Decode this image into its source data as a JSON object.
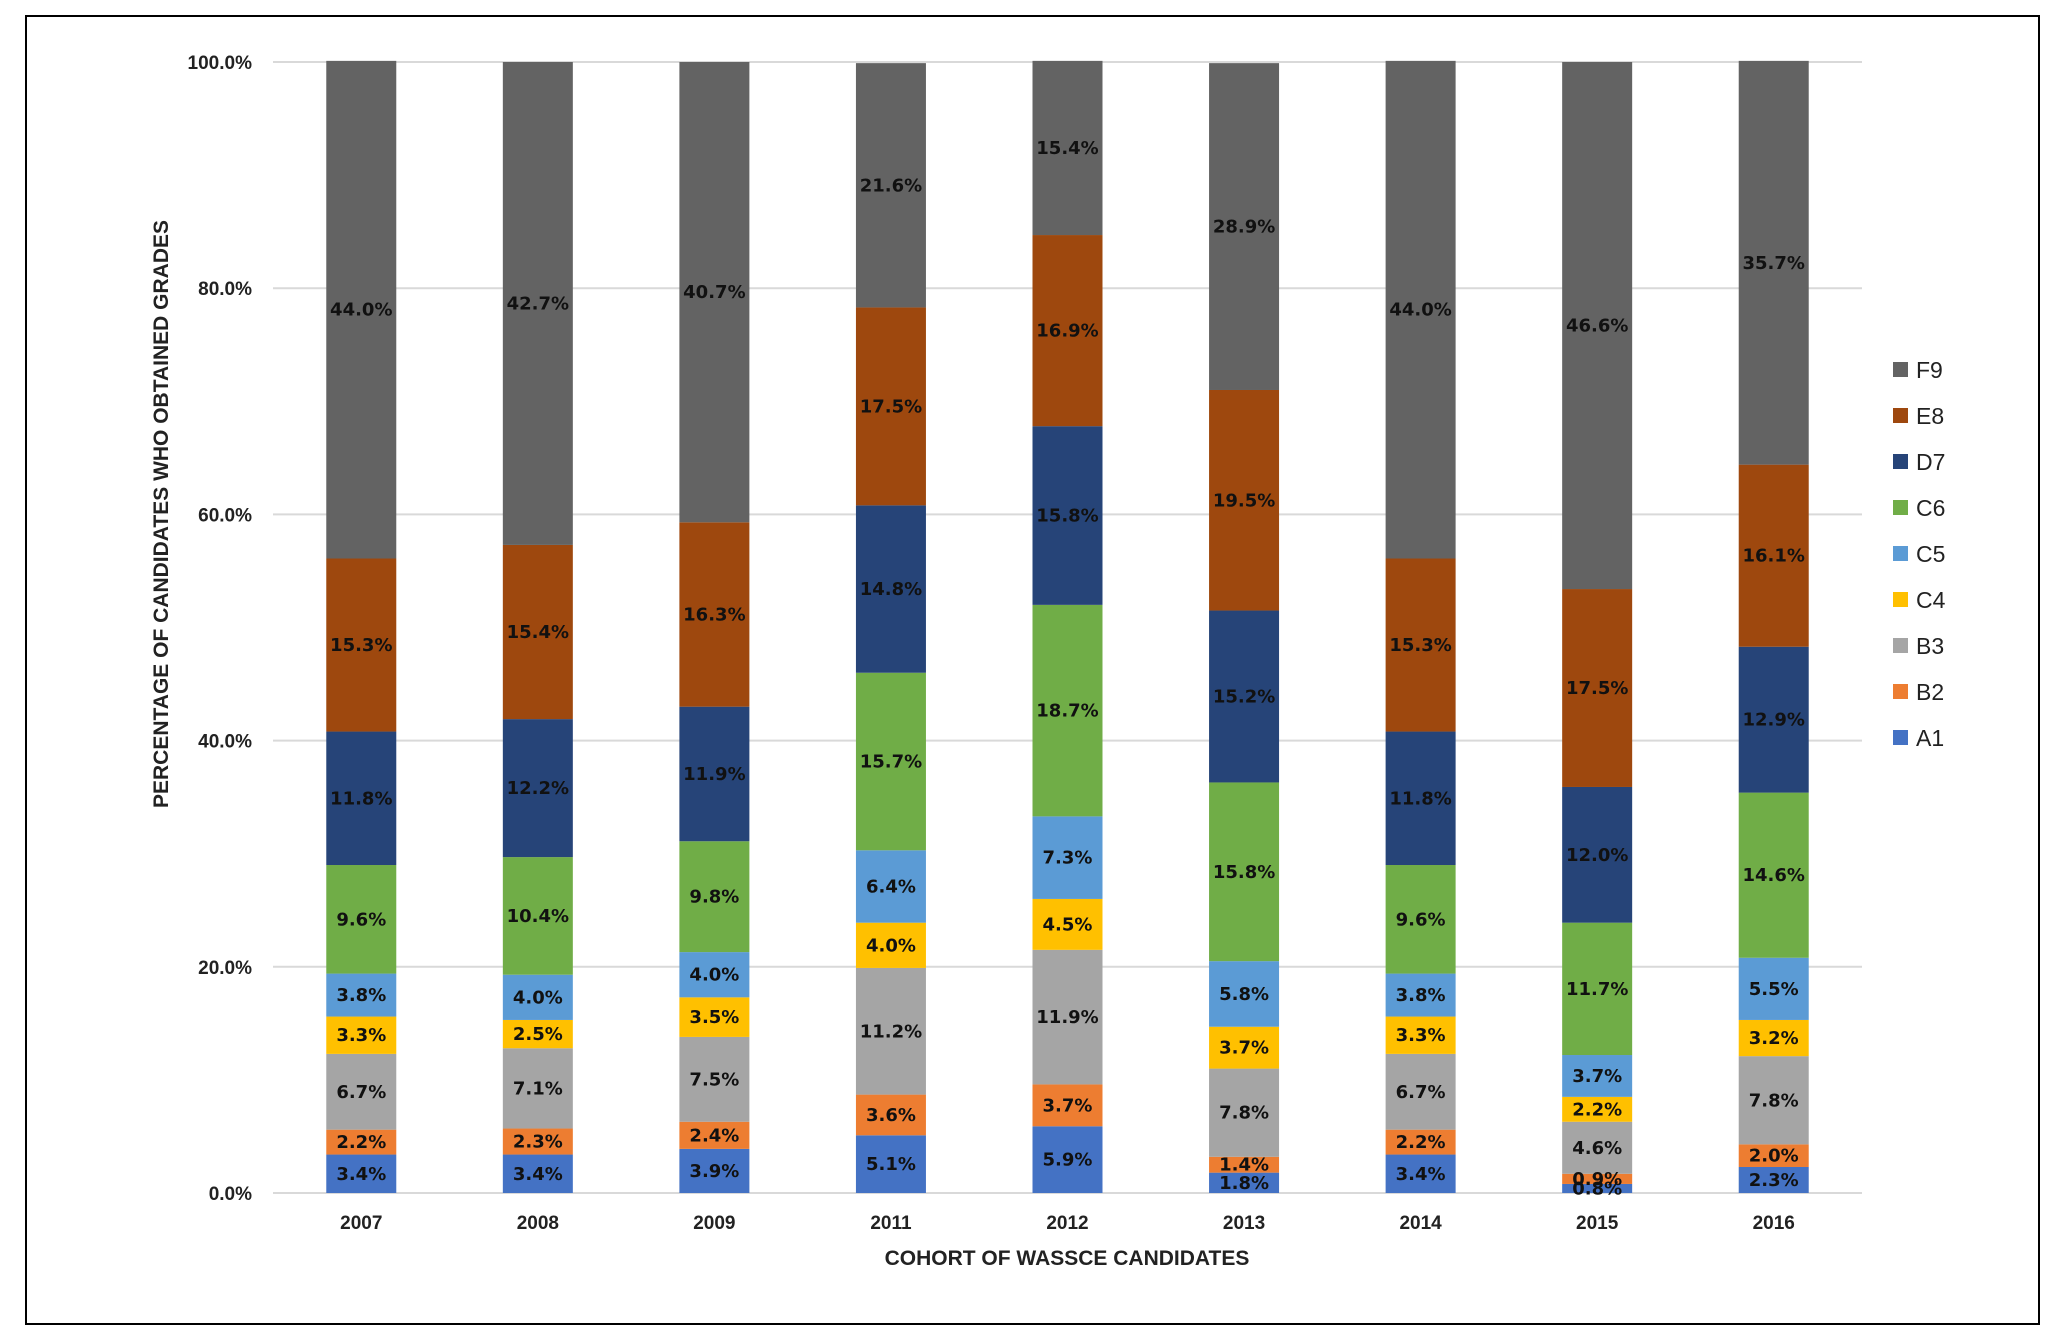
{
  "chart_data": {
    "type": "bar",
    "stacked": true,
    "title": "",
    "xlabel": "COHORT OF WASSCE CANDIDATES",
    "ylabel": "PERCENTAGE OF CANDIDATES WHO OBTAINED GRADES",
    "ylim": [
      0,
      100
    ],
    "y_ticks": [
      "0.0%",
      "20.0%",
      "40.0%",
      "60.0%",
      "80.0%",
      "100.0%"
    ],
    "grid": true,
    "legend_position": "right",
    "categories": [
      "2007",
      "2008",
      "2009",
      "2011",
      "2012",
      "2013",
      "2014",
      "2015",
      "2016"
    ],
    "series": [
      {
        "name": "A1",
        "color": "#4472C4",
        "values": [
          3.4,
          3.4,
          3.9,
          5.1,
          5.9,
          1.8,
          3.4,
          0.8,
          2.3
        ],
        "labels": [
          "3.4%",
          "3.4%",
          "3.9%",
          "5.1%",
          "5.9%",
          "1.8%",
          "3.4%",
          "0.8%",
          "2.3%"
        ]
      },
      {
        "name": "B2",
        "color": "#ED7D31",
        "values": [
          2.2,
          2.3,
          2.4,
          3.6,
          3.7,
          1.4,
          2.2,
          0.9,
          2.0
        ],
        "labels": [
          "2.2%",
          "2.3%",
          "2.4%",
          "3.6%",
          "3.7%",
          "1.4%",
          "2.2%",
          "0.9%",
          "2.0%"
        ]
      },
      {
        "name": "B3",
        "color": "#A5A5A5",
        "values": [
          6.7,
          7.1,
          7.5,
          11.2,
          11.9,
          7.8,
          6.7,
          4.6,
          7.8
        ],
        "labels": [
          "6.7%",
          "7.1%",
          "7.5%",
          "11.2%",
          "11.9%",
          "7.8%",
          "6.7%",
          "4.6%",
          "7.8%"
        ]
      },
      {
        "name": "C4",
        "color": "#FFC000",
        "values": [
          3.3,
          2.5,
          3.5,
          4.0,
          4.5,
          3.7,
          3.3,
          2.2,
          3.2
        ],
        "labels": [
          "3.3%",
          "2.5%",
          "3.5%",
          "4.0%",
          "4.5%",
          "3.7%",
          "3.3%",
          "2.2%",
          "3.2%"
        ]
      },
      {
        "name": "C5",
        "color": "#5B9BD5",
        "values": [
          3.8,
          4.0,
          4.0,
          6.4,
          7.3,
          5.8,
          3.8,
          3.7,
          5.5
        ],
        "labels": [
          "3.8%",
          "4.0%",
          "4.0%",
          "6.4%",
          "7.3%",
          "5.8%",
          "3.8%",
          "3.7%",
          "5.5%"
        ]
      },
      {
        "name": "C6",
        "color": "#70AD47",
        "values": [
          9.6,
          10.4,
          9.8,
          15.7,
          18.7,
          15.8,
          9.6,
          11.7,
          14.6
        ],
        "labels": [
          "9.6%",
          "10.4%",
          "9.8%",
          "15.7%",
          "18.7%",
          "15.8%",
          "9.6%",
          "11.7%",
          "14.6%"
        ]
      },
      {
        "name": "D7",
        "color": "#264478",
        "values": [
          11.8,
          12.2,
          11.9,
          14.8,
          15.8,
          15.2,
          11.8,
          12.0,
          12.9
        ],
        "labels": [
          "11.8%",
          "12.2%",
          "11.9%",
          "14.8%",
          "15.8%",
          "15.2%",
          "11.8%",
          "12.0%",
          "12.9%"
        ]
      },
      {
        "name": "E8",
        "color": "#9E480E",
        "values": [
          15.3,
          15.4,
          16.3,
          17.5,
          16.9,
          19.5,
          15.3,
          17.5,
          16.1
        ],
        "labels": [
          "15.3%",
          "15.4%",
          "16.3%",
          "17.5%",
          "16.9%",
          "19.5%",
          "15.3%",
          "17.5%",
          "16.1%"
        ]
      },
      {
        "name": "F9",
        "color": "#636363",
        "values": [
          44.0,
          42.7,
          40.7,
          21.6,
          15.4,
          28.9,
          44.0,
          46.6,
          35.7
        ],
        "labels": [
          "44.0%",
          "42.7%",
          "40.7%",
          "21.6%",
          "15.4%",
          "28.9%",
          "44.0%",
          "46.6%",
          "35.7%"
        ]
      }
    ],
    "legend_order": [
      "F9",
      "E8",
      "D7",
      "C6",
      "C5",
      "C4",
      "B3",
      "B2",
      "A1"
    ]
  }
}
